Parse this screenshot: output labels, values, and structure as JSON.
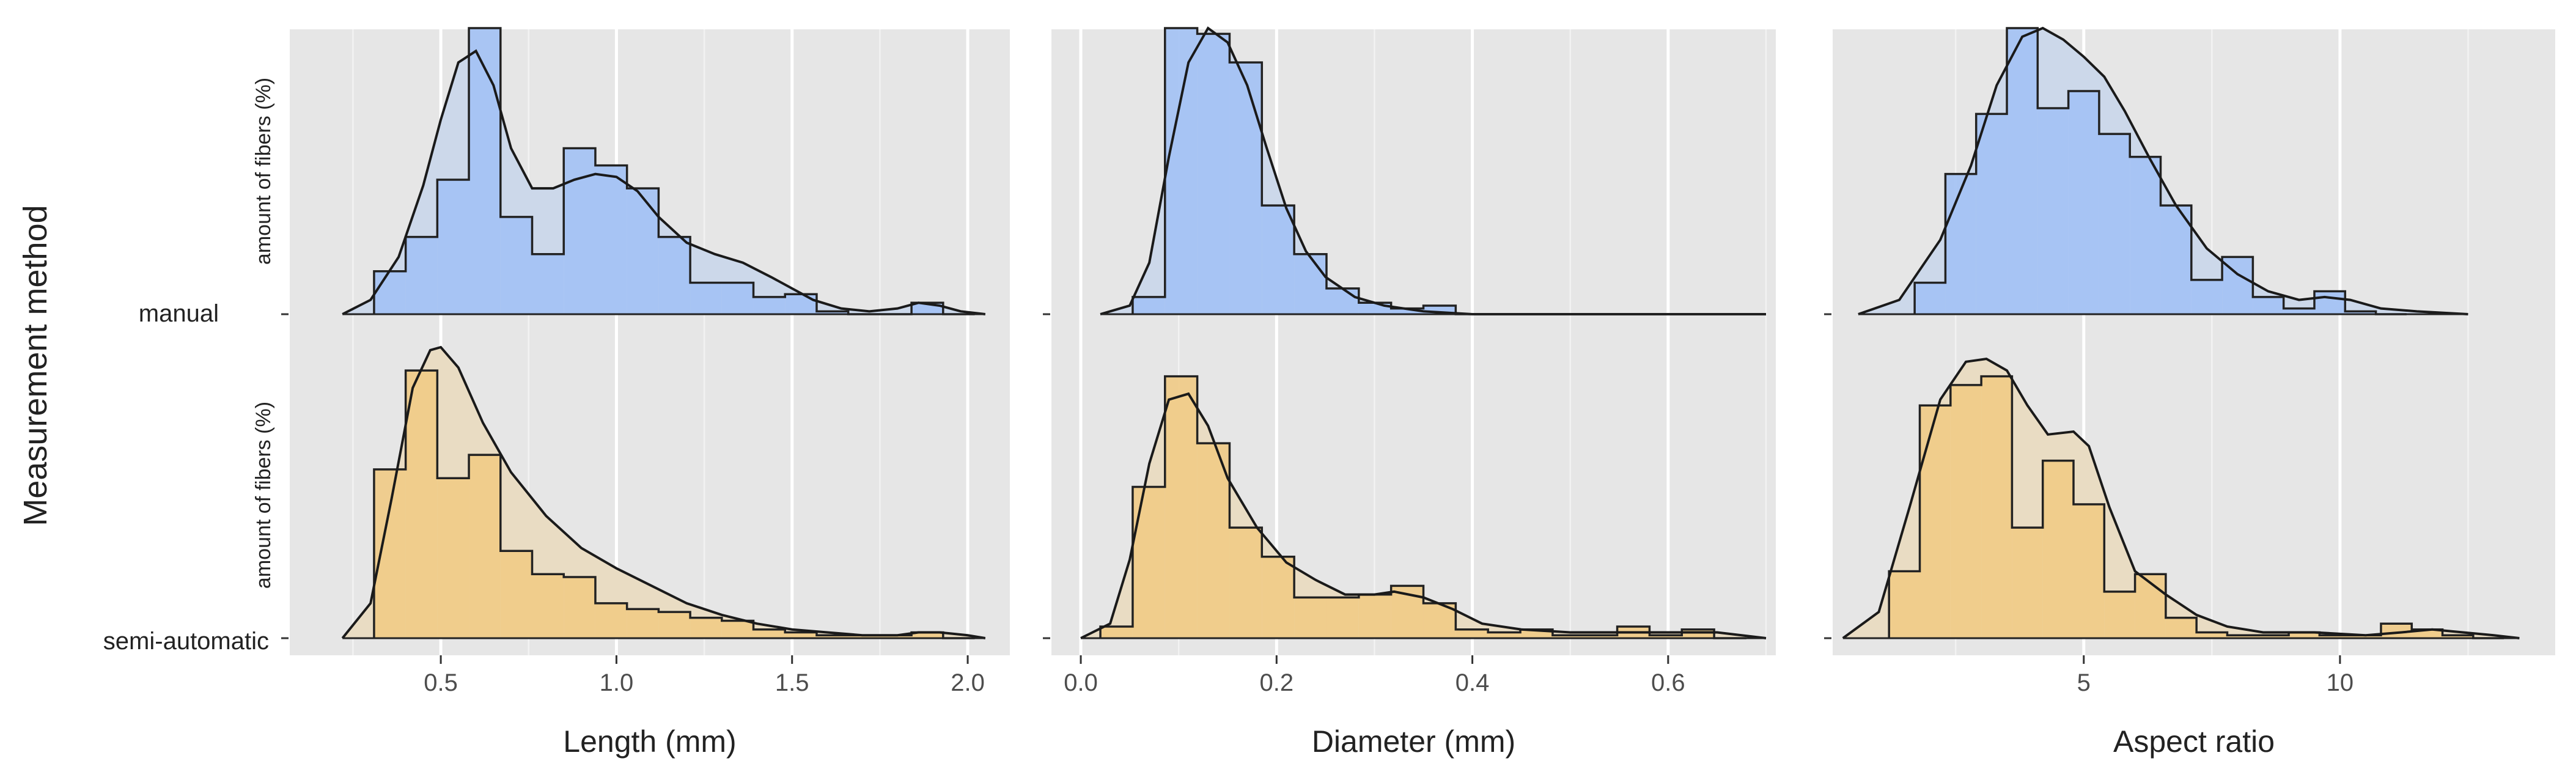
{
  "figure": {
    "y_title": "Measurement method",
    "amount_label": "amount of fibers (%)",
    "categories": [
      "manual",
      "semi-automatic"
    ]
  },
  "colors": {
    "manual": "#a4c2f4",
    "manual_light": "#ccd8ea",
    "semi": "#f0cb88",
    "semi_light": "#e9dcc3",
    "background": "#e6e6e6"
  },
  "chart_data": [
    {
      "type": "area",
      "xlabel": "Length (mm)",
      "xlim": [
        0.07,
        2.12
      ],
      "x_major_ticks": [
        0.5,
        1.0,
        1.5,
        2.0
      ],
      "x_tick_labels": [
        "0.5",
        "1.0",
        "1.5",
        "2.0"
      ],
      "x_minor_ticks": [
        0.25,
        0.75,
        1.25,
        1.75
      ],
      "bin_width": 0.09,
      "groups": [
        {
          "name": "manual",
          "bin_starts": [
            0.31,
            0.4,
            0.49,
            0.58,
            0.67,
            0.76,
            0.85,
            0.94,
            1.03,
            1.12,
            1.21,
            1.3,
            1.39,
            1.48,
            1.57,
            1.66,
            1.75,
            1.84,
            1.93
          ],
          "hist": [
            0.15,
            0.27,
            0.47,
            1.0,
            0.34,
            0.21,
            0.58,
            0.52,
            0.44,
            0.27,
            0.11,
            0.11,
            0.06,
            0.07,
            0.01,
            0.0,
            0.0,
            0.04,
            0.0
          ],
          "density_x": [
            0.22,
            0.3,
            0.38,
            0.45,
            0.5,
            0.55,
            0.6,
            0.65,
            0.7,
            0.76,
            0.82,
            0.88,
            0.94,
            1.0,
            1.06,
            1.12,
            1.2,
            1.28,
            1.36,
            1.44,
            1.5,
            1.56,
            1.64,
            1.72,
            1.8,
            1.86,
            1.92,
            1.98,
            2.05
          ],
          "density_y": [
            0.0,
            0.05,
            0.2,
            0.45,
            0.68,
            0.88,
            0.92,
            0.8,
            0.58,
            0.44,
            0.44,
            0.47,
            0.49,
            0.48,
            0.43,
            0.34,
            0.25,
            0.21,
            0.18,
            0.13,
            0.09,
            0.05,
            0.02,
            0.01,
            0.02,
            0.04,
            0.03,
            0.01,
            0.0
          ]
        },
        {
          "name": "semi-automatic",
          "bin_starts": [
            0.31,
            0.4,
            0.49,
            0.58,
            0.67,
            0.76,
            0.85,
            0.94,
            1.03,
            1.12,
            1.21,
            1.3,
            1.39,
            1.48,
            1.57,
            1.66,
            1.75,
            1.84,
            1.93
          ],
          "hist": [
            0.58,
            0.92,
            0.55,
            0.63,
            0.3,
            0.22,
            0.21,
            0.12,
            0.1,
            0.09,
            0.07,
            0.06,
            0.03,
            0.02,
            0.01,
            0.01,
            0.01,
            0.02,
            0.0
          ],
          "density_x": [
            0.22,
            0.3,
            0.36,
            0.42,
            0.47,
            0.5,
            0.55,
            0.62,
            0.7,
            0.8,
            0.9,
            1.0,
            1.1,
            1.2,
            1.3,
            1.4,
            1.5,
            1.6,
            1.7,
            1.8,
            1.86,
            1.92,
            2.0,
            2.05
          ],
          "density_y": [
            0.0,
            0.12,
            0.48,
            0.86,
            0.99,
            1.0,
            0.93,
            0.74,
            0.57,
            0.42,
            0.31,
            0.24,
            0.18,
            0.12,
            0.08,
            0.05,
            0.03,
            0.02,
            0.01,
            0.01,
            0.02,
            0.02,
            0.01,
            0.0
          ]
        }
      ]
    },
    {
      "type": "area",
      "xlabel": "Diameter  (mm)",
      "xlim": [
        -0.03,
        0.71
      ],
      "x_major_ticks": [
        0.0,
        0.2,
        0.4,
        0.6
      ],
      "x_tick_labels": [
        "0.0",
        "0.2",
        "0.4",
        "0.6"
      ],
      "x_minor_ticks": [
        0.1,
        0.3,
        0.5,
        0.7
      ],
      "bin_width": 0.033,
      "groups": [
        {
          "name": "manual",
          "bin_starts": [
            0.053,
            0.086,
            0.119,
            0.152,
            0.185,
            0.218,
            0.251,
            0.284,
            0.317,
            0.35,
            0.383
          ],
          "hist": [
            0.06,
            1.0,
            0.98,
            0.88,
            0.38,
            0.21,
            0.09,
            0.04,
            0.02,
            0.03,
            0.0
          ],
          "density_x": [
            0.02,
            0.05,
            0.07,
            0.09,
            0.11,
            0.13,
            0.15,
            0.17,
            0.19,
            0.21,
            0.23,
            0.25,
            0.28,
            0.31,
            0.35,
            0.4,
            0.5,
            0.7
          ],
          "density_y": [
            0.0,
            0.03,
            0.18,
            0.55,
            0.88,
            1.0,
            0.95,
            0.8,
            0.58,
            0.37,
            0.22,
            0.13,
            0.06,
            0.03,
            0.01,
            0.0,
            0.0,
            0.0
          ]
        },
        {
          "name": "semi-automatic",
          "bin_starts": [
            0.02,
            0.053,
            0.086,
            0.119,
            0.152,
            0.185,
            0.218,
            0.251,
            0.284,
            0.317,
            0.35,
            0.383,
            0.416,
            0.449,
            0.482,
            0.515,
            0.548,
            0.581,
            0.614,
            0.647
          ],
          "hist": [
            0.04,
            0.52,
            0.9,
            0.67,
            0.38,
            0.28,
            0.14,
            0.14,
            0.15,
            0.18,
            0.12,
            0.03,
            0.02,
            0.03,
            0.01,
            0.01,
            0.04,
            0.01,
            0.03,
            0.0
          ],
          "density_x": [
            0.0,
            0.03,
            0.05,
            0.07,
            0.09,
            0.11,
            0.13,
            0.15,
            0.18,
            0.21,
            0.24,
            0.27,
            0.3,
            0.32,
            0.35,
            0.38,
            0.41,
            0.45,
            0.5,
            0.55,
            0.6,
            0.65,
            0.7
          ],
          "density_y": [
            0.0,
            0.05,
            0.27,
            0.6,
            0.82,
            0.84,
            0.73,
            0.55,
            0.38,
            0.26,
            0.2,
            0.15,
            0.15,
            0.16,
            0.14,
            0.1,
            0.05,
            0.03,
            0.02,
            0.02,
            0.02,
            0.02,
            0.0
          ]
        }
      ]
    },
    {
      "type": "area",
      "xlabel": "Aspect  ratio",
      "xlim": [
        0.1,
        14.2
      ],
      "x_major_ticks": [
        5,
        10
      ],
      "x_tick_labels": [
        "5",
        "10"
      ],
      "x_minor_ticks": [
        2.5,
        7.5,
        12.5
      ],
      "bin_width": 0.6,
      "groups": [
        {
          "name": "manual",
          "bin_starts": [
            1.7,
            2.3,
            2.9,
            3.5,
            4.1,
            4.7,
            5.3,
            5.9,
            6.5,
            7.1,
            7.7,
            8.3,
            8.9,
            9.5,
            10.1,
            10.7
          ],
          "hist": [
            0.11,
            0.49,
            0.7,
            1.0,
            0.72,
            0.78,
            0.63,
            0.55,
            0.38,
            0.12,
            0.2,
            0.06,
            0.02,
            0.08,
            0.01,
            0.0
          ],
          "density_x": [
            0.6,
            1.4,
            2.2,
            2.8,
            3.3,
            3.8,
            4.2,
            4.6,
            5.0,
            5.4,
            5.8,
            6.3,
            6.8,
            7.4,
            8.0,
            8.6,
            9.2,
            9.7,
            10.2,
            10.8,
            11.5,
            12.5
          ],
          "density_y": [
            0.0,
            0.05,
            0.26,
            0.52,
            0.8,
            0.97,
            1.0,
            0.96,
            0.9,
            0.83,
            0.71,
            0.54,
            0.38,
            0.23,
            0.14,
            0.08,
            0.05,
            0.06,
            0.05,
            0.02,
            0.01,
            0.0
          ]
        },
        {
          "name": "semi-automatic",
          "bin_starts": [
            1.2,
            1.8,
            2.4,
            3.0,
            3.6,
            4.2,
            4.8,
            5.4,
            6.0,
            6.6,
            7.2,
            7.8,
            8.4,
            9.0,
            9.6,
            10.2,
            10.8,
            11.4,
            12.0,
            12.6
          ],
          "hist": [
            0.23,
            0.8,
            0.87,
            0.9,
            0.38,
            0.61,
            0.46,
            0.16,
            0.22,
            0.07,
            0.02,
            0.01,
            0.01,
            0.02,
            0.01,
            0.01,
            0.05,
            0.03,
            0.01,
            0.0
          ],
          "density_x": [
            0.3,
            1.0,
            1.6,
            2.2,
            2.7,
            3.1,
            3.5,
            3.9,
            4.3,
            4.8,
            5.1,
            5.5,
            6.0,
            6.6,
            7.2,
            7.8,
            8.5,
            9.5,
            10.5,
            11.2,
            11.8,
            12.4,
            13.0,
            13.5
          ],
          "density_y": [
            0.0,
            0.09,
            0.45,
            0.82,
            0.95,
            0.96,
            0.92,
            0.8,
            0.7,
            0.71,
            0.66,
            0.45,
            0.23,
            0.15,
            0.08,
            0.04,
            0.02,
            0.02,
            0.01,
            0.02,
            0.03,
            0.02,
            0.01,
            0.0
          ]
        }
      ]
    }
  ]
}
